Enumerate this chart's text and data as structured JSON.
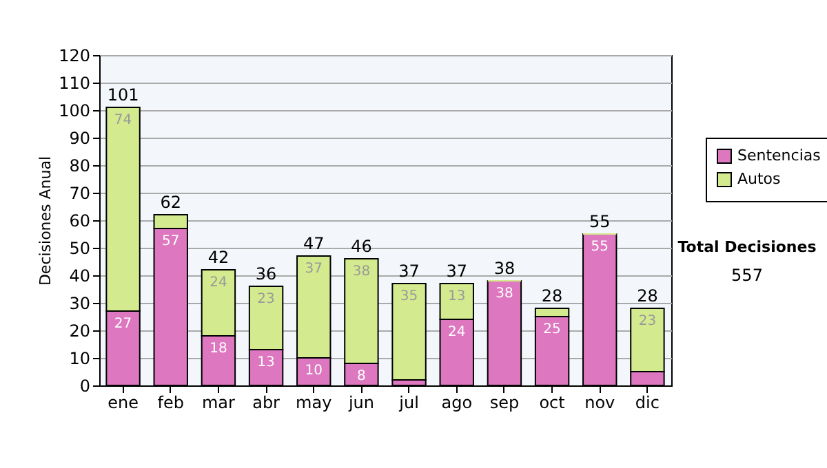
{
  "chart_data": {
    "type": "bar",
    "stacked": true,
    "ylabel": "Decisiones Anual",
    "categories": [
      "ene",
      "feb",
      "mar",
      "abr",
      "may",
      "jun",
      "jul",
      "ago",
      "sep",
      "oct",
      "nov",
      "dic"
    ],
    "series": [
      {
        "name": "Sentencias",
        "color": "#dd77c0",
        "values": [
          27,
          57,
          18,
          13,
          10,
          8,
          2,
          24,
          38,
          25,
          55,
          5
        ],
        "value_labels": [
          "27",
          "57",
          "18",
          "13",
          "10",
          "8",
          null,
          "24",
          "38",
          "25",
          "55",
          null
        ]
      },
      {
        "name": "Autos",
        "color": "#d4ea8f",
        "values": [
          74,
          5,
          24,
          23,
          37,
          38,
          35,
          13,
          0,
          3,
          0,
          23
        ],
        "value_labels": [
          "74",
          null,
          "24",
          "23",
          "37",
          "38",
          "35",
          "13",
          null,
          null,
          null,
          "23"
        ]
      }
    ],
    "totals": [
      "101",
      "62",
      "42",
      "36",
      "47",
      "46",
      "37",
      "37",
      "38",
      "28",
      "55",
      "28"
    ],
    "ylim": [
      0,
      120
    ],
    "yticks": [
      0,
      10,
      20,
      30,
      40,
      50,
      60,
      70,
      80,
      90,
      100,
      110,
      120
    ],
    "grid": "y",
    "legend": "right",
    "annotations": [
      "Total Decisiones",
      "557"
    ]
  }
}
